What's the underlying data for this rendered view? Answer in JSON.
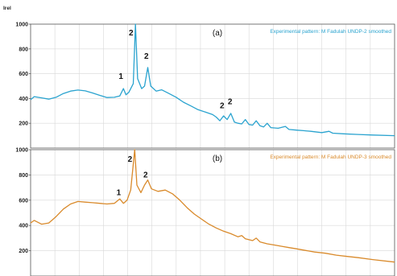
{
  "chart_data": [
    {
      "type": "line",
      "panel_label": "(a)",
      "legend": "Experimental pattern: M Fadulah UNDP-2 smoothed",
      "color": "#2aa3cf",
      "ylabel": "Irel",
      "ylim": [
        0,
        1000
      ],
      "yticks": [
        1000,
        800,
        600,
        400,
        200
      ],
      "xlim": [
        0,
        100
      ],
      "grid": true,
      "legend_position": "top-right",
      "points": [
        [
          0,
          390
        ],
        [
          1,
          415
        ],
        [
          3,
          405
        ],
        [
          5,
          395
        ],
        [
          7,
          410
        ],
        [
          9,
          440
        ],
        [
          11,
          460
        ],
        [
          13,
          468
        ],
        [
          15,
          462
        ],
        [
          17,
          445
        ],
        [
          19,
          425
        ],
        [
          21,
          408
        ],
        [
          23,
          410
        ],
        [
          24.5,
          420
        ],
        [
          25.5,
          480
        ],
        [
          26.2,
          430
        ],
        [
          27,
          450
        ],
        [
          28.2,
          520
        ],
        [
          28.8,
          1000
        ],
        [
          29.4,
          560
        ],
        [
          30.5,
          480
        ],
        [
          31.3,
          500
        ],
        [
          32.2,
          650
        ],
        [
          33,
          500
        ],
        [
          34.5,
          460
        ],
        [
          36,
          470
        ],
        [
          38,
          440
        ],
        [
          40,
          410
        ],
        [
          42,
          370
        ],
        [
          44,
          340
        ],
        [
          46,
          310
        ],
        [
          48,
          290
        ],
        [
          50,
          270
        ],
        [
          51,
          250
        ],
        [
          52,
          220
        ],
        [
          53,
          260
        ],
        [
          54,
          230
        ],
        [
          55,
          280
        ],
        [
          56,
          210
        ],
        [
          57,
          200
        ],
        [
          58,
          195
        ],
        [
          59,
          230
        ],
        [
          60,
          190
        ],
        [
          61,
          185
        ],
        [
          62,
          220
        ],
        [
          63,
          180
        ],
        [
          64,
          170
        ],
        [
          65,
          200
        ],
        [
          66,
          165
        ],
        [
          68,
          160
        ],
        [
          70,
          175
        ],
        [
          71,
          150
        ],
        [
          73,
          145
        ],
        [
          75,
          140
        ],
        [
          77,
          135
        ],
        [
          80,
          125
        ],
        [
          82,
          135
        ],
        [
          83,
          120
        ],
        [
          86,
          115
        ],
        [
          90,
          110
        ],
        [
          94,
          105
        ],
        [
          100,
          100
        ]
      ],
      "annotations": [
        {
          "text": "1",
          "x": 24.8,
          "y": 560
        },
        {
          "text": "2",
          "x": 27.6,
          "y": 910
        },
        {
          "text": "2",
          "x": 31.8,
          "y": 720
        },
        {
          "text": "2",
          "x": 52.6,
          "y": 320
        },
        {
          "text": "2",
          "x": 54.8,
          "y": 355
        }
      ]
    },
    {
      "type": "line",
      "panel_label": "(b)",
      "legend": "Experimental pattern: M Fadulah UNDP-3 smoothed",
      "color": "#d98a2b",
      "ylabel": "",
      "ylim": [
        0,
        1000
      ],
      "yticks": [
        1000,
        800,
        600,
        400,
        200
      ],
      "xlim": [
        0,
        100
      ],
      "grid": true,
      "legend_position": "top-right",
      "points": [
        [
          0,
          420
        ],
        [
          1,
          440
        ],
        [
          3,
          410
        ],
        [
          5,
          420
        ],
        [
          7,
          470
        ],
        [
          9,
          530
        ],
        [
          11,
          570
        ],
        [
          13,
          590
        ],
        [
          15,
          585
        ],
        [
          17,
          580
        ],
        [
          19,
          575
        ],
        [
          21,
          570
        ],
        [
          23,
          575
        ],
        [
          24.5,
          610
        ],
        [
          25.5,
          575
        ],
        [
          26.5,
          600
        ],
        [
          27.5,
          680
        ],
        [
          28.6,
          1000
        ],
        [
          29.2,
          720
        ],
        [
          30.3,
          660
        ],
        [
          31.3,
          720
        ],
        [
          32.2,
          760
        ],
        [
          33.2,
          690
        ],
        [
          35,
          670
        ],
        [
          37,
          680
        ],
        [
          39,
          650
        ],
        [
          41,
          600
        ],
        [
          43,
          540
        ],
        [
          45,
          490
        ],
        [
          47,
          450
        ],
        [
          49,
          410
        ],
        [
          51,
          380
        ],
        [
          53,
          355
        ],
        [
          55,
          335
        ],
        [
          57,
          310
        ],
        [
          58,
          320
        ],
        [
          59,
          295
        ],
        [
          61,
          280
        ],
        [
          62,
          300
        ],
        [
          63,
          270
        ],
        [
          65,
          255
        ],
        [
          67,
          245
        ],
        [
          69,
          235
        ],
        [
          71,
          225
        ],
        [
          73,
          215
        ],
        [
          75,
          205
        ],
        [
          78,
          190
        ],
        [
          81,
          180
        ],
        [
          84,
          165
        ],
        [
          87,
          155
        ],
        [
          90,
          145
        ],
        [
          94,
          130
        ],
        [
          100,
          110
        ]
      ],
      "annotations": [
        {
          "text": "1",
          "x": 24.2,
          "y": 640
        },
        {
          "text": "2",
          "x": 27.3,
          "y": 905
        },
        {
          "text": "2",
          "x": 31.6,
          "y": 780
        }
      ]
    }
  ]
}
